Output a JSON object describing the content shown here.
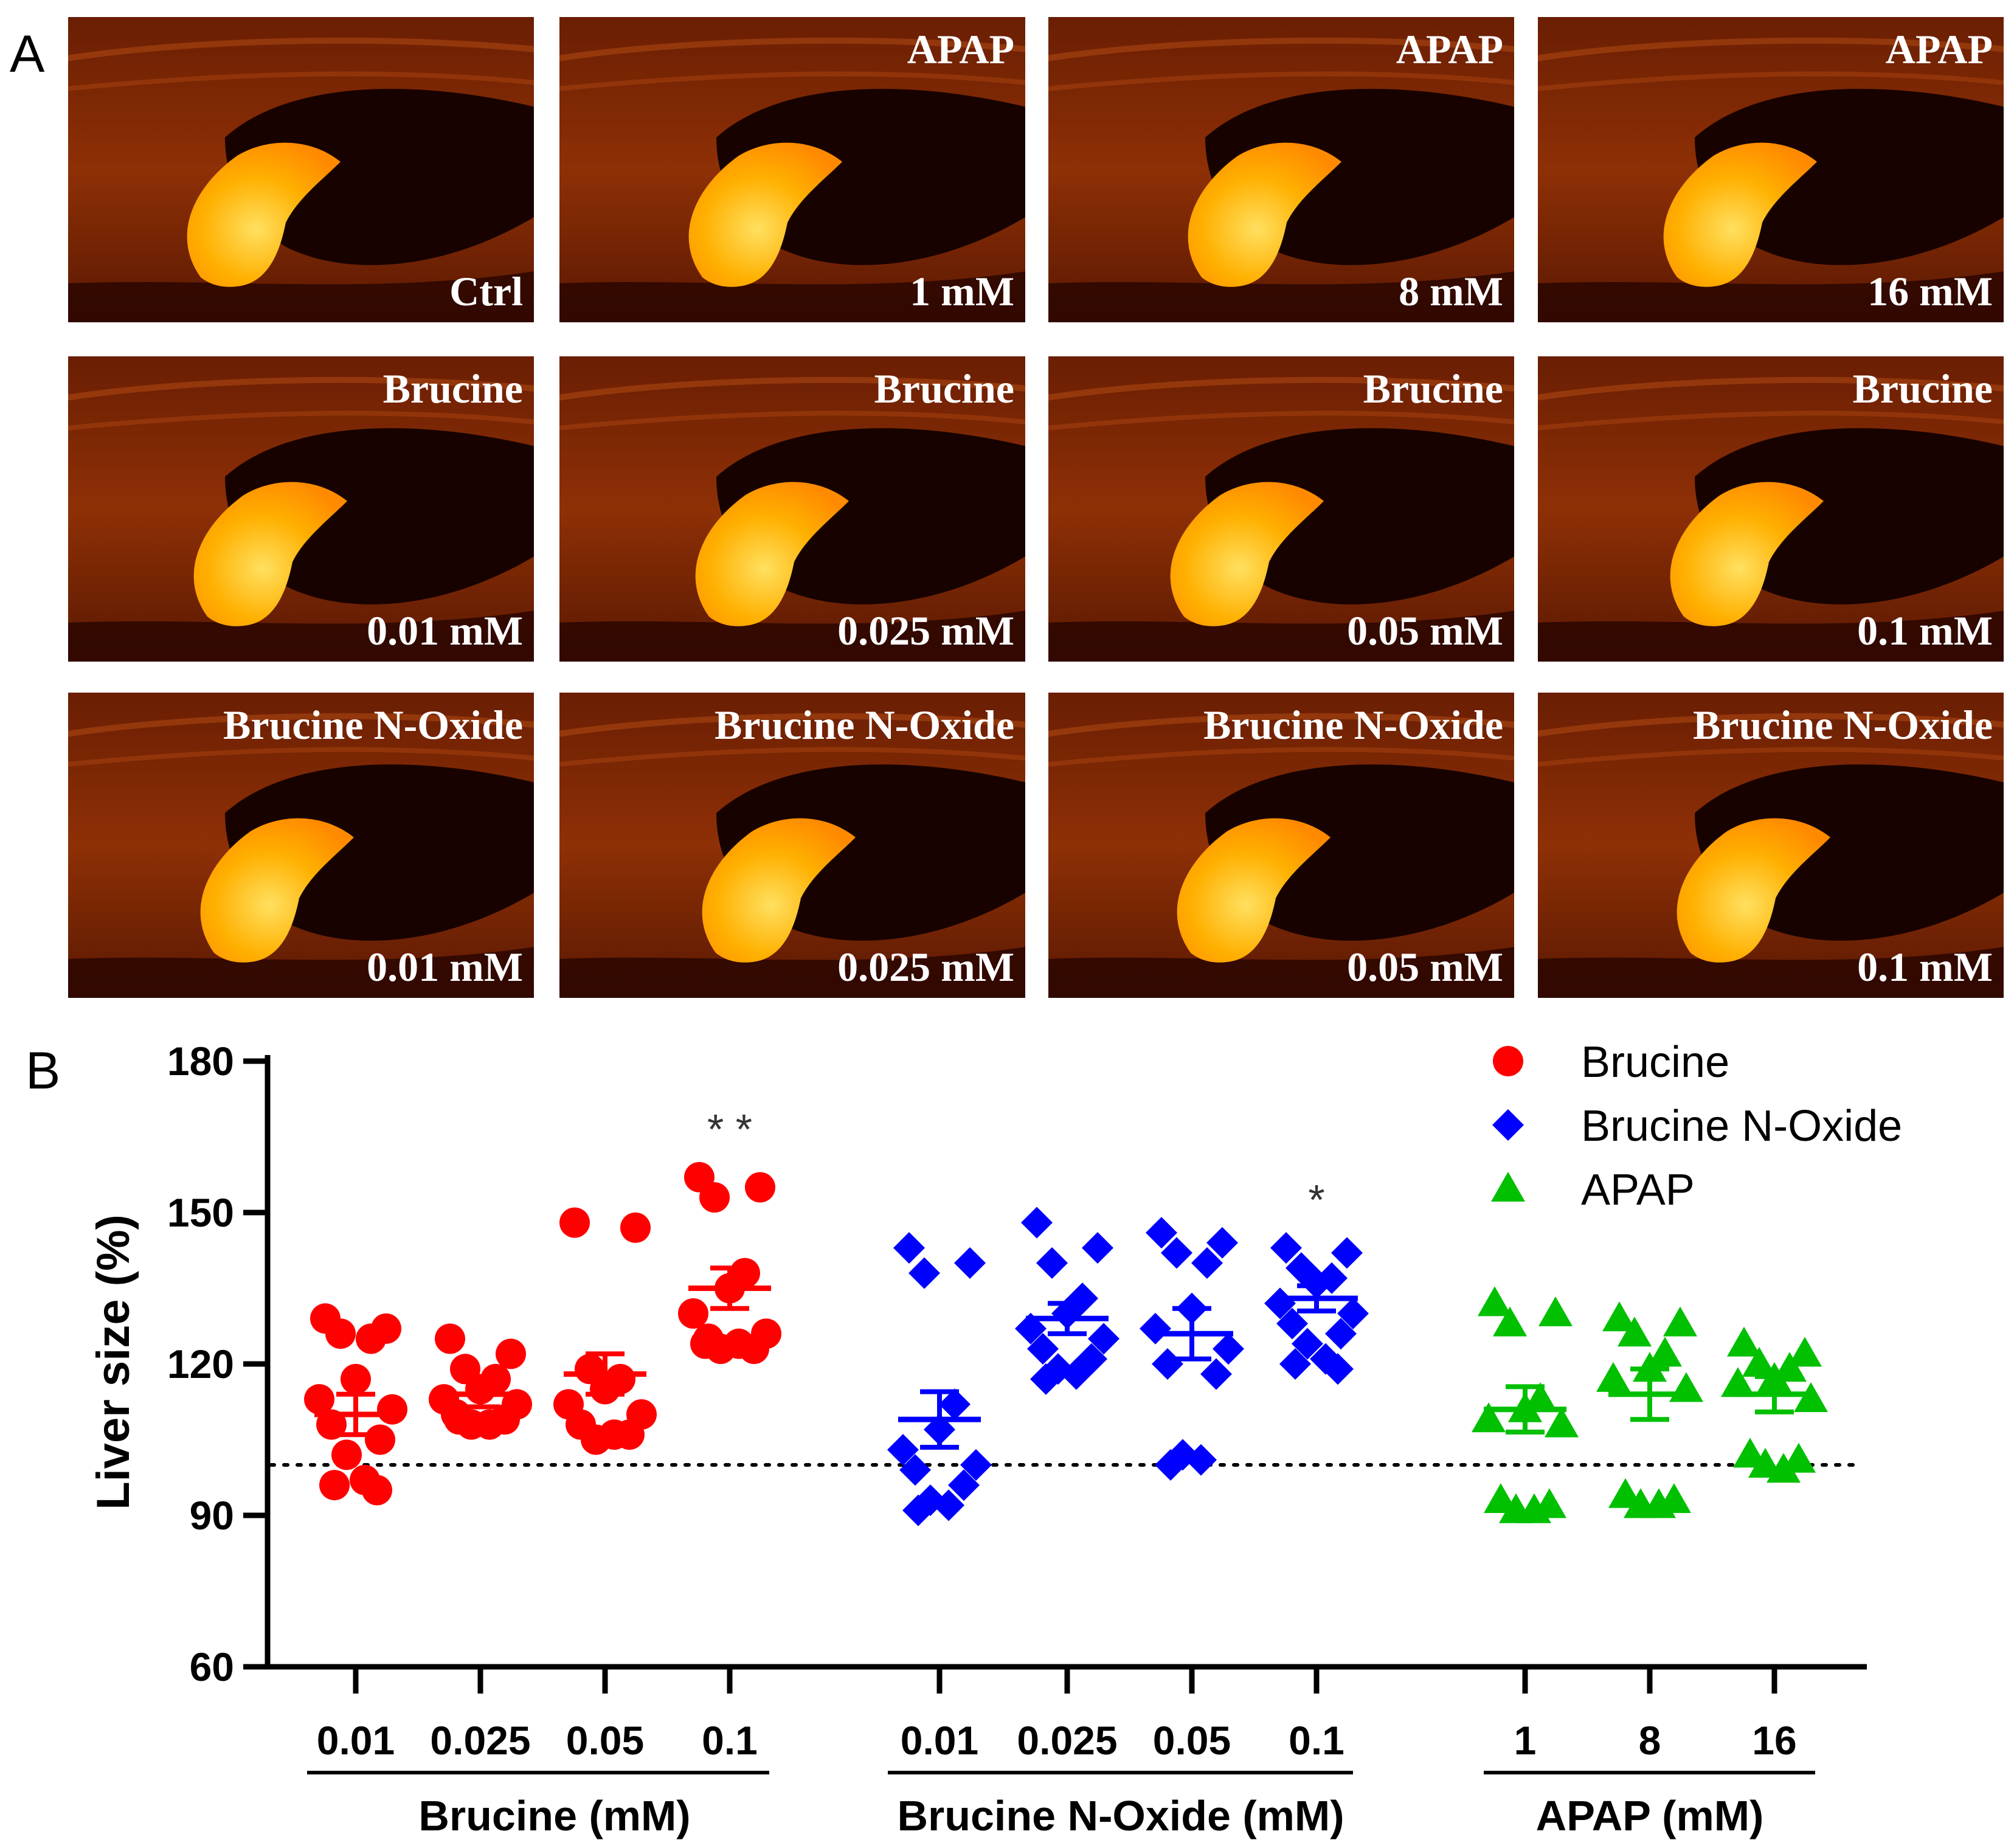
{
  "panel_a": {
    "letter": "A",
    "rows": [
      [
        {
          "top": "",
          "bottom": "Ctrl"
        },
        {
          "top": "APAP",
          "bottom": "1 mM"
        },
        {
          "top": "APAP",
          "bottom": "8 mM"
        },
        {
          "top": "APAP",
          "bottom": "16 mM"
        }
      ],
      [
        {
          "top": "Brucine",
          "bottom": "0.01 mM"
        },
        {
          "top": "Brucine",
          "bottom": "0.025 mM"
        },
        {
          "top": "Brucine",
          "bottom": "0.05 mM"
        },
        {
          "top": "Brucine",
          "bottom": "0.1 mM"
        }
      ],
      [
        {
          "top": "Brucine N-Oxide",
          "bottom": "0.01 mM"
        },
        {
          "top": "Brucine N-Oxide",
          "bottom": "0.025 mM"
        },
        {
          "top": "Brucine N-Oxide",
          "bottom": "0.05 mM"
        },
        {
          "top": "Brucine N-Oxide",
          "bottom": "0.1 mM"
        }
      ]
    ],
    "colors": {
      "tissue": "#8a2a05",
      "dark": "#160200",
      "liver": "#ffb000",
      "liver_core": "#ffd24a"
    }
  },
  "chart_data": {
    "type": "scatter",
    "panel_letter": "B",
    "ylabel": "Liver size (%)",
    "ylim": [
      60,
      180
    ],
    "yticks": [
      60,
      90,
      120,
      150,
      180
    ],
    "reference_line": 100,
    "groups": [
      {
        "name": "Brucine",
        "title": "Brucine (mM)",
        "marker": "circle",
        "color": "#ff0000",
        "series": [
          {
            "label": "0.01",
            "mean": 110,
            "sem": 4,
            "sig": "",
            "values": [
              129,
              127,
              126,
              125,
              117,
              113,
              111,
              108,
              105,
              102,
              97,
              96,
              95
            ]
          },
          {
            "label": "0.025",
            "mean": 114,
            "sem": 2.5,
            "sig": "",
            "values": [
              125,
              122,
              119,
              117,
              115,
              113,
              112,
              110,
              109,
              108,
              108,
              109
            ]
          },
          {
            "label": "0.05",
            "mean": 118,
            "sem": 4,
            "sig": "",
            "values": [
              148,
              147,
              119,
              117,
              115,
              112,
              110,
              108,
              106,
              105,
              106
            ]
          },
          {
            "label": "0.1",
            "mean": 135,
            "sem": 4,
            "sig": "**",
            "values": [
              157,
              155,
              153,
              138,
              135,
              130,
              126,
              124,
              123,
              123,
              124,
              125
            ]
          }
        ]
      },
      {
        "name": "Brucine N-Oxide",
        "title": "Brucine N-Oxide (mM)",
        "marker": "diamond",
        "color": "#0000ff",
        "series": [
          {
            "label": "0.01",
            "mean": 109,
            "sem": 5.5,
            "sig": "",
            "values": [
              143,
              140,
              138,
              112,
              107,
              103,
              100,
              99,
              96,
              93,
              92,
              91
            ]
          },
          {
            "label": "0.025",
            "mean": 129,
            "sem": 3,
            "sig": "",
            "values": [
              148,
              143,
              140,
              133,
              130,
              127,
              125,
              123,
              121,
              119,
              118,
              117
            ]
          },
          {
            "label": "0.05",
            "mean": 126,
            "sem": 5,
            "sig": "",
            "values": [
              146,
              144,
              142,
              140,
              131,
              127,
              123,
              120,
              118,
              102,
              101,
              100
            ]
          },
          {
            "label": "0.1",
            "mean": 133,
            "sem": 2.5,
            "sig": "*",
            "values": [
              143,
              142,
              139,
              137,
              136,
              132,
              130,
              128,
              126,
              124,
              121,
              120,
              119
            ]
          }
        ]
      },
      {
        "name": "APAP",
        "title": "APAP (mM)",
        "marker": "triangle",
        "color": "#00c000",
        "series": [
          {
            "label": "1",
            "mean": 111,
            "sem": 4.5,
            "sig": "",
            "values": [
              132,
              130,
              128,
              113,
              111,
              109,
              108,
              93,
              92,
              91,
              91
            ]
          },
          {
            "label": "8",
            "mean": 114,
            "sem": 5,
            "sig": "",
            "values": [
              129,
              128,
              126,
              122,
              119,
              117,
              115,
              94,
              93,
              92,
              92
            ]
          },
          {
            "label": "16",
            "mean": 114,
            "sem": 3.5,
            "sig": "",
            "values": [
              124,
              122,
              120,
              119,
              117,
              116,
              113,
              102,
              101,
              100,
              99
            ]
          }
        ]
      }
    ],
    "legend": [
      "Brucine",
      "Brucine N-Oxide",
      "APAP"
    ]
  }
}
